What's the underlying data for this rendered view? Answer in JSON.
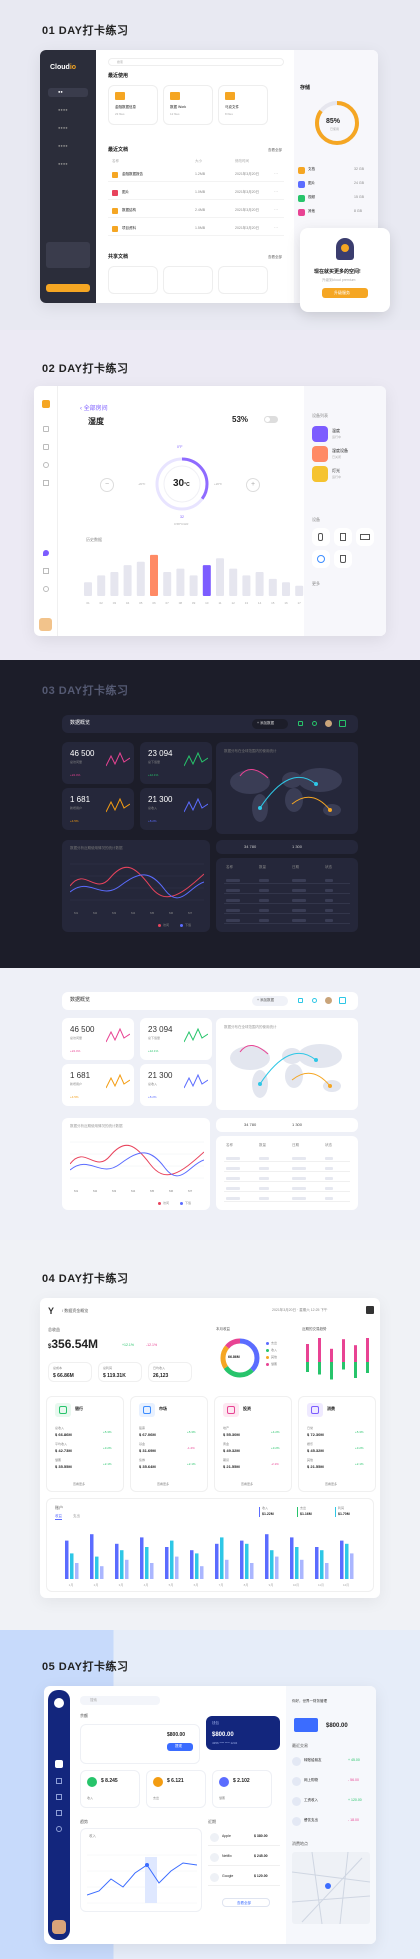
{
  "s1": {
    "title": "01 DAY打卡练习",
    "logo": "Cloud",
    "logo_suffix": "io",
    "nav": [
      "●●",
      "●●●●",
      "●●●●",
      "●●●●",
      "●●●●"
    ],
    "search": "搜索",
    "recent": "最近使用",
    "folders": [
      {
        "name": "金融数据信息",
        "meta": "23 files"
      },
      {
        "name": "数据 Work",
        "meta": "12 files"
      },
      {
        "name": "马克文件",
        "meta": "8 files"
      }
    ],
    "recent_files": "最近文档",
    "view_all": "查看全部",
    "col_name": "名称",
    "col_size": "大小",
    "col_date": "修改时间",
    "files": [
      {
        "name": "金融数据报告",
        "size": "1.2MB",
        "date": "2021年3月20日"
      },
      {
        "name": "图片",
        "size": "1.0MB",
        "date": "2021年3月20日"
      },
      {
        "name": "数据结构",
        "size": "2.4MB",
        "date": "2021年3月20日"
      },
      {
        "name": "项目资料",
        "size": "1.5MB",
        "date": "2021年3月20日"
      }
    ],
    "shared": "共享文档",
    "storage": "存储",
    "pct": "85%",
    "used": "已使用",
    "legend": [
      {
        "n": "文档",
        "v": "32 GB"
      },
      {
        "n": "图片",
        "v": "24 GB"
      },
      {
        "n": "视频",
        "v": "15 GB"
      },
      {
        "n": "其他",
        "v": "8 GB"
      }
    ],
    "promo_title": "现在就买更多的空间!",
    "promo_sub": "升级到cloud premium",
    "promo_btn": "升级服务"
  },
  "s2": {
    "title": "02 DAY打卡练习",
    "back": "全部房间",
    "page": "湿度",
    "humidity": "53%",
    "temp": "30",
    "unit": "°C",
    "scale_top": "0°F",
    "scale_l": "-20°F",
    "scale_r": "+20°F",
    "scale_b": "32",
    "scale_b2": "0.58°C/HR",
    "chart_title": "历史数据",
    "days": [
      "01",
      "02",
      "03",
      "04",
      "05",
      "06",
      "07",
      "08",
      "09",
      "10",
      "11",
      "12",
      "13",
      "14",
      "15",
      "16",
      "17"
    ],
    "bars": [
      20,
      30,
      35,
      45,
      50,
      60,
      35,
      40,
      30,
      45,
      55,
      40,
      30,
      35,
      25,
      20,
      15
    ],
    "devices_title": "设备列表",
    "devices": [
      {
        "n": "温度",
        "s": "运行中"
      },
      {
        "n": "湿度设备",
        "s": "已关闭"
      },
      {
        "n": "灯光",
        "s": "运行中"
      }
    ],
    "rooms_title": "设备",
    "more": "更多"
  },
  "s3": {
    "title": "03 DAY打卡练习",
    "dash": "数据概览",
    "btn": "+ 添加数据",
    "stats": [
      {
        "v": "46 500",
        "l": "总访问量",
        "p": "+24.4%",
        "c": "#e84393"
      },
      {
        "v": "23 094",
        "l": "总下载量",
        "p": "+12.1%",
        "c": "#27c46b"
      },
      {
        "v": "1 681",
        "l": "新增用户",
        "p": "+4.5%",
        "c": "#f39c12"
      },
      {
        "v": "21 300",
        "l": "总收入",
        "p": "+8.2%",
        "c": "#5b6cff"
      }
    ],
    "map_title": "数据分布在全球范围内的使用统计",
    "line_title": "数据分析近期使用情况的统计数据",
    "months": [
      "M1",
      "M2",
      "M3",
      "M4",
      "M5",
      "M6",
      "M7"
    ],
    "legend": [
      "访问",
      "下载"
    ],
    "bar_a": "34 780",
    "bar_b": "1 300",
    "tbl_head": [
      "名称",
      "数量",
      "日期",
      "状态"
    ],
    "tbl_rows": 5
  },
  "s4": {
    "title": "04 DAY打卡练习",
    "logo": "Y",
    "nav": "/ 数据资金概览",
    "date": "2021年3月20日 · 星期六 12:25 下午",
    "total_label": "总收益",
    "total": "356.54M",
    "cur": "$",
    "up1": "+12.1%",
    "up2": "-12.1%",
    "small": [
      {
        "l": "总成本",
        "v": "66.86M"
      },
      {
        "l": "总利润",
        "v": "119.31K"
      },
      {
        "l": "日均收入",
        "v": "26,123"
      }
    ],
    "donut_label": "本月收益",
    "donut_v": "66.86M",
    "donut_legend": [
      "支出",
      "收入",
      "其他",
      "储蓄"
    ],
    "cards": [
      {
        "t": "银行",
        "rows": [
          [
            "总收入",
            "66.86M",
            "+5.3%"
          ],
          [
            "平均收入",
            "42.73M",
            "+3.2%"
          ],
          [
            "储蓄",
            "35.55M",
            "+2.1%"
          ]
        ]
      },
      {
        "t": "市场",
        "rows": [
          [
            "股票",
            "67.06M",
            "+5.3%"
          ],
          [
            "基金",
            "31.69M",
            "-1.2%"
          ],
          [
            "债券",
            "35.64M",
            "+2.1%"
          ]
        ]
      },
      {
        "t": "投资",
        "rows": [
          [
            "地产",
            "55.30M",
            "+4.2%"
          ],
          [
            "黄金",
            "49.32M",
            "+3.2%"
          ],
          [
            "期货",
            "21.55M",
            "-2.1%"
          ]
        ]
      },
      {
        "t": "消费",
        "rows": [
          [
            "日常",
            "72.30M",
            "+5.3%"
          ],
          [
            "娱乐",
            "45.32M",
            "+3.2%"
          ],
          [
            "其他",
            "21.55M",
            "+2.1%"
          ]
        ]
      }
    ],
    "more": "查看更多",
    "bar_title": "账户",
    "tabs": [
      "收益",
      "支出"
    ],
    "bar_legend": [
      {
        "n": "收入",
        "v": "$1.22M"
      },
      {
        "n": "支出",
        "v": "$1.16M"
      },
      {
        "n": "利润",
        "v": "$1.70M"
      }
    ],
    "bar_labels": [
      "1月",
      "2月",
      "3月",
      "4月",
      "5月",
      "6月",
      "7月",
      "8月",
      "9月",
      "10月",
      "11月",
      "12月"
    ],
    "bars": [
      [
        60,
        40,
        25
      ],
      [
        70,
        35,
        20
      ],
      [
        55,
        45,
        30
      ],
      [
        65,
        50,
        25
      ],
      [
        50,
        60,
        35
      ],
      [
        45,
        40,
        20
      ],
      [
        55,
        65,
        30
      ],
      [
        60,
        55,
        25
      ],
      [
        70,
        45,
        35
      ],
      [
        65,
        50,
        30
      ],
      [
        50,
        45,
        25
      ],
      [
        60,
        55,
        40
      ]
    ],
    "right_title": "近期的交易趋势",
    "right_legend": [
      "收入",
      "支出"
    ]
  },
  "s5": {
    "title": "05 DAY打卡练习",
    "search": "搜索",
    "cards_label": "钱包",
    "card_amount": "800.00",
    "card_num": "4356 **** **** 1234",
    "balance": "800.00",
    "balance_label": "余额",
    "btn": "提现",
    "small": [
      {
        "v": "8.245",
        "l": "收入",
        "c": "#27c46b"
      },
      {
        "v": "6.121",
        "l": "支出",
        "c": "#f39c12"
      },
      {
        "v": "2.102",
        "l": "储蓄",
        "c": "#5b6cff"
      }
    ],
    "chart_title": "趋势",
    "chart_lbl": "收入",
    "list_title": "近期",
    "list": [
      {
        "n": "Apple",
        "v": "$ 380.00"
      },
      {
        "n": "Netflix",
        "v": "$ 245.00"
      },
      {
        "n": "Google",
        "v": "$ 120.00"
      }
    ],
    "list_btn": "查看全部",
    "user": "你好，世界一财务管理",
    "amount": "800.00",
    "tx_title": "最近交易",
    "tx": [
      {
        "n": "转账给朋友",
        "v": "+ 45.00"
      },
      {
        "n": "网上购物",
        "v": "- 56.00"
      },
      {
        "n": "工资收入",
        "v": "+ 120.00"
      },
      {
        "n": "餐饮支出",
        "v": "- 18.00"
      }
    ],
    "map_title": "消费地点"
  }
}
